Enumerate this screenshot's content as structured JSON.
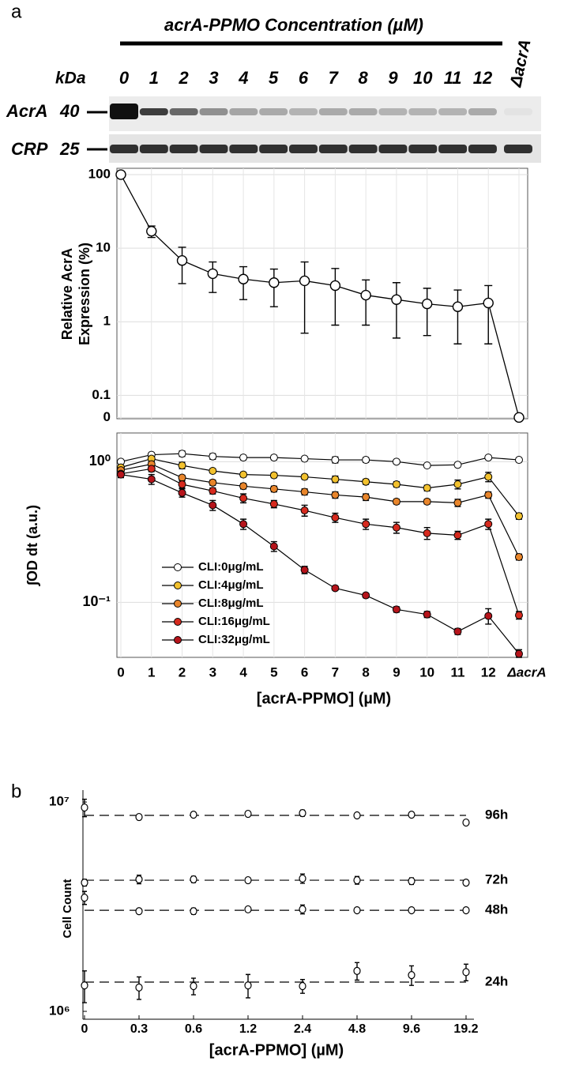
{
  "panel_labels": [
    "a",
    "b"
  ],
  "blot": {
    "header": "acrA-PPMO Concentration (µM)",
    "kda_label": "kDa",
    "lanes": [
      "0",
      "1",
      "2",
      "3",
      "4",
      "5",
      "6",
      "7",
      "8",
      "9",
      "10",
      "11",
      "12",
      "ΔacrA"
    ],
    "rows": [
      {
        "protein": "AcrA",
        "kda": "40"
      },
      {
        "protein": "CRP",
        "kda": "25"
      }
    ]
  },
  "chart_data": [
    {
      "type": "line",
      "ylabel": [
        "Relative AcrA",
        "Expression (%)"
      ],
      "log_y": true,
      "grid": true,
      "color": "#000000",
      "values": [
        100,
        17,
        6.8,
        4.5,
        3.8,
        3.4,
        3.6,
        3.1,
        2.3,
        2.0,
        1.75,
        1.6,
        1.8,
        0.05
      ],
      "errors": [
        0,
        3,
        3.5,
        2,
        1.8,
        1.8,
        2.9,
        2.2,
        1.4,
        1.4,
        1.1,
        1.1,
        1.3,
        0
      ],
      "ylim": [
        0.048,
        122
      ],
      "yticks": [
        100,
        10,
        1,
        0.1,
        {
          "value": 0.05,
          "label": "0"
        }
      ]
    },
    {
      "type": "line",
      "ylabel": "∫OD dt (a.u.)",
      "xlabel": "[acrA-PPMO] (µM)",
      "log_y": true,
      "grid": true,
      "legend": "lower left",
      "categories": [
        "0",
        "1",
        "2",
        "3",
        "4",
        "5",
        "6",
        "7",
        "8",
        "9",
        "10",
        "11",
        "12",
        "ΔacrA"
      ],
      "series": [
        {
          "name": "CLI:0μg/mL",
          "color": "#ffffff",
          "values": [
            1.0,
            1.12,
            1.14,
            1.09,
            1.07,
            1.07,
            1.05,
            1.03,
            1.03,
            1.0,
            0.94,
            0.95,
            1.07,
            1.03
          ],
          "errors": [
            0.02,
            0.03,
            0.05,
            0.05,
            0.04,
            0.04,
            0.03,
            0.05,
            0.04,
            0.03,
            0.02,
            0.03,
            0.03,
            0.02
          ]
        },
        {
          "name": "CLI:4μg/mL",
          "color": "#f2c12e",
          "values": [
            0.91,
            1.05,
            0.94,
            0.86,
            0.81,
            0.8,
            0.78,
            0.75,
            0.72,
            0.69,
            0.65,
            0.69,
            0.78,
            0.41
          ],
          "errors": [
            0.03,
            0.04,
            0.05,
            0.03,
            0.03,
            0.03,
            0.03,
            0.04,
            0.03,
            0.03,
            0.03,
            0.05,
            0.06,
            0.02
          ]
        },
        {
          "name": "CLI:8μg/mL",
          "color": "#e8852b",
          "values": [
            0.87,
            0.96,
            0.77,
            0.71,
            0.67,
            0.64,
            0.61,
            0.58,
            0.56,
            0.52,
            0.52,
            0.51,
            0.58,
            0.21
          ],
          "errors": [
            0.03,
            0.04,
            0.03,
            0.03,
            0.03,
            0.03,
            0.03,
            0.03,
            0.03,
            0.02,
            0.02,
            0.03,
            0.03,
            0.01
          ]
        },
        {
          "name": "CLI:16μg/mL",
          "color": "#d62a1e",
          "values": [
            0.82,
            0.89,
            0.69,
            0.62,
            0.55,
            0.5,
            0.45,
            0.4,
            0.36,
            0.34,
            0.31,
            0.3,
            0.36,
            0.081
          ],
          "errors": [
            0.03,
            0.04,
            0.04,
            0.03,
            0.04,
            0.03,
            0.04,
            0.03,
            0.03,
            0.03,
            0.03,
            0.02,
            0.03,
            0.005
          ]
        },
        {
          "name": "CLI:32μg/mL",
          "color": "#b5141b",
          "values": [
            0.81,
            0.75,
            0.6,
            0.49,
            0.36,
            0.25,
            0.17,
            0.126,
            0.112,
            0.089,
            0.082,
            0.062,
            0.08,
            0.043
          ],
          "errors": [
            0.04,
            0.06,
            0.04,
            0.04,
            0.03,
            0.02,
            0.01,
            0.004,
            0.004,
            0.004,
            0.004,
            0.003,
            0.01,
            0.003
          ]
        }
      ],
      "ylim": [
        0.0406,
        1.6
      ],
      "yticks": [
        {
          "value": 1,
          "label": "10⁰"
        },
        {
          "value": 0.1,
          "label": "10⁻¹"
        }
      ]
    },
    {
      "type": "dot",
      "ylabel": "Cell Count",
      "xlabel": "[acrA-PPMO] (µM)",
      "log_y": true,
      "categories": [
        "0",
        "0.3",
        "0.6",
        "1.2",
        "2.4",
        "4.8",
        "9.6",
        "19.2"
      ],
      "series": [
        {
          "name": "96h",
          "reference": 8630000,
          "values": [
            9410000,
            8480000,
            8700000,
            8780000,
            8850000,
            8630000,
            8700000,
            7980000
          ],
          "errors": [
            900000,
            250000,
            250000,
            250000,
            300000,
            200000,
            250000,
            200000
          ]
        },
        {
          "name": "72h",
          "reference": 4230000,
          "values": [
            4120000,
            4270000,
            4270000,
            4230000,
            4310000,
            4230000,
            4190000,
            4120000
          ],
          "errors": [
            150000,
            200000,
            150000,
            120000,
            220000,
            180000,
            150000,
            100000
          ]
        },
        {
          "name": "48h",
          "reference": 3040000,
          "values": [
            3490000,
            3010000,
            3010000,
            3070000,
            3070000,
            3040000,
            3040000,
            3040000
          ],
          "errors": [
            250000,
            80000,
            100000,
            80000,
            150000,
            80000,
            80000,
            80000
          ]
        },
        {
          "name": "24h",
          "reference": 1380000,
          "values": [
            1330000,
            1300000,
            1320000,
            1330000,
            1320000,
            1560000,
            1490000,
            1540000
          ],
          "errors": [
            230000,
            160000,
            120000,
            170000,
            100000,
            150000,
            160000,
            140000
          ]
        }
      ],
      "ylim": [
        917000,
        11400000
      ],
      "yticks": [
        {
          "value": 1000000,
          "label": "10⁶"
        },
        {
          "value": 10000000,
          "label": "10⁷"
        }
      ]
    }
  ]
}
